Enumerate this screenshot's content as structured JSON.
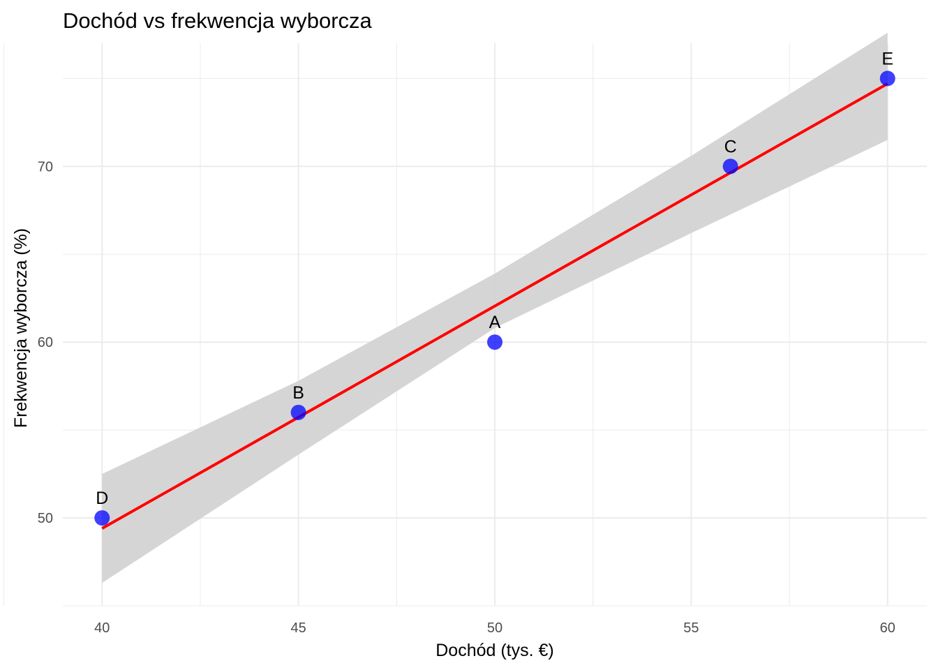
{
  "chart_data": {
    "type": "scatter",
    "title": "Dochód vs frekwencja wyborcza",
    "xlabel": "Dochód (tys. €)",
    "ylabel": "Frekwencja wyborcza (%)",
    "xlim": [
      39,
      61
    ],
    "ylim": [
      45,
      77
    ],
    "x_ticks": [
      40,
      45,
      50,
      55,
      60
    ],
    "y_ticks": [
      50,
      60,
      70
    ],
    "x_tick_labels": [
      "40",
      "45",
      "50",
      "55",
      "60"
    ],
    "y_tick_labels": [
      "50",
      "60",
      "70"
    ],
    "grid": true,
    "points": [
      {
        "label": "A",
        "x": 50,
        "y": 60
      },
      {
        "label": "B",
        "x": 45,
        "y": 56
      },
      {
        "label": "C",
        "x": 56,
        "y": 70
      },
      {
        "label": "D",
        "x": 40,
        "y": 50
      },
      {
        "label": "E",
        "x": 60,
        "y": 75
      }
    ],
    "trend_line": {
      "method": "linear",
      "from": [
        40,
        49.4
      ],
      "to": [
        60,
        74.7
      ]
    },
    "confidence_band": {
      "x": [
        40,
        45,
        50,
        55,
        60
      ],
      "lower": [
        46.3,
        53.6,
        60.8,
        66.2,
        71.5
      ],
      "upper": [
        52.5,
        57.8,
        63.9,
        70.6,
        77.6
      ]
    },
    "colors": {
      "points": "#0000ff",
      "line": "#ff0000",
      "band": "#d3d3d3",
      "grid": "#ebebeb"
    }
  }
}
